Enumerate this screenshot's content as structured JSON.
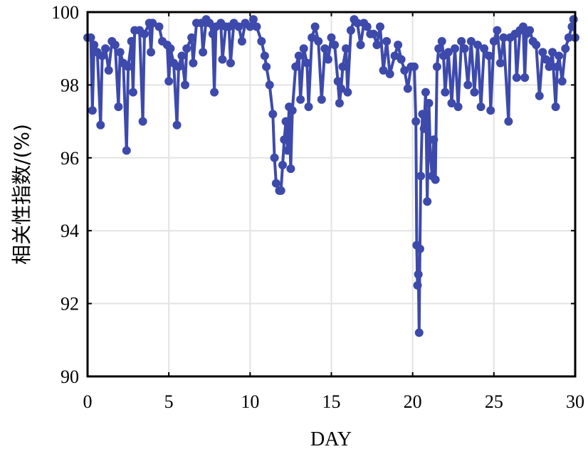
{
  "chart_data": {
    "type": "line",
    "title": "",
    "xlabel": "DAY",
    "ylabel": "相关性指数/(%)",
    "xlim": [
      0,
      30
    ],
    "ylim": [
      90,
      100
    ],
    "xticks": [
      0,
      5,
      10,
      15,
      20,
      25,
      30
    ],
    "yticks": [
      90,
      92,
      94,
      96,
      98,
      100
    ],
    "xtick_labels": [
      "0",
      "5",
      "10",
      "15",
      "20",
      "25",
      "30"
    ],
    "ytick_labels": [
      "90",
      "92",
      "94",
      "96",
      "98",
      "100"
    ],
    "grid": true,
    "legend": "none",
    "color": "#3d4aab",
    "series": [
      {
        "name": "相关性指数",
        "points": [
          [
            0,
            99.3
          ],
          [
            0.2,
            99.3
          ],
          [
            0.3,
            97.3
          ],
          [
            0.4,
            99.1
          ],
          [
            0.6,
            98.9
          ],
          [
            0.8,
            96.9
          ],
          [
            0.9,
            98.8
          ],
          [
            1.1,
            99.0
          ],
          [
            1.3,
            98.4
          ],
          [
            1.5,
            99.2
          ],
          [
            1.7,
            99.1
          ],
          [
            1.9,
            97.4
          ],
          [
            2.0,
            98.9
          ],
          [
            2.2,
            98.6
          ],
          [
            2.4,
            96.2
          ],
          [
            2.5,
            98.5
          ],
          [
            2.7,
            99.2
          ],
          [
            2.8,
            97.8
          ],
          [
            2.9,
            99.5
          ],
          [
            3.2,
            99.5
          ],
          [
            3.4,
            97.0
          ],
          [
            3.5,
            99.4
          ],
          [
            3.8,
            99.7
          ],
          [
            3.9,
            98.9
          ],
          [
            4.0,
            99.7
          ],
          [
            4.4,
            99.6
          ],
          [
            4.6,
            99.2
          ],
          [
            4.9,
            99.1
          ],
          [
            5.0,
            98.1
          ],
          [
            5.1,
            99.0
          ],
          [
            5.3,
            98.6
          ],
          [
            5.5,
            96.9
          ],
          [
            5.6,
            98.5
          ],
          [
            5.8,
            98.8
          ],
          [
            6.0,
            98.0
          ],
          [
            6.1,
            99.0
          ],
          [
            6.4,
            99.3
          ],
          [
            6.5,
            98.6
          ],
          [
            6.7,
            99.7
          ],
          [
            7.0,
            99.7
          ],
          [
            7.1,
            98.9
          ],
          [
            7.3,
            99.8
          ],
          [
            7.5,
            99.7
          ],
          [
            7.7,
            99.4
          ],
          [
            7.8,
            97.8
          ],
          [
            7.9,
            99.6
          ],
          [
            8.2,
            99.7
          ],
          [
            8.3,
            98.7
          ],
          [
            8.5,
            99.6
          ],
          [
            8.7,
            99.6
          ],
          [
            8.8,
            98.6
          ],
          [
            9.0,
            99.7
          ],
          [
            9.3,
            99.6
          ],
          [
            9.5,
            99.2
          ],
          [
            9.7,
            99.7
          ],
          [
            10.0,
            99.6
          ],
          [
            10.2,
            99.8
          ],
          [
            10.4,
            99.6
          ],
          [
            10.7,
            99.2
          ],
          [
            10.9,
            98.8
          ],
          [
            11.0,
            98.5
          ],
          [
            11.2,
            98.0
          ],
          [
            11.4,
            97.2
          ],
          [
            11.5,
            96.0
          ],
          [
            11.6,
            95.3
          ],
          [
            11.8,
            95.1
          ],
          [
            11.9,
            95.1
          ],
          [
            12.0,
            95.8
          ],
          [
            12.1,
            96.5
          ],
          [
            12.2,
            97.0
          ],
          [
            12.3,
            96.2
          ],
          [
            12.4,
            97.4
          ],
          [
            12.5,
            95.7
          ],
          [
            12.6,
            97.3
          ],
          [
            12.8,
            98.5
          ],
          [
            13.0,
            98.8
          ],
          [
            13.1,
            97.6
          ],
          [
            13.3,
            99.0
          ],
          [
            13.5,
            98.6
          ],
          [
            13.6,
            97.4
          ],
          [
            13.8,
            99.3
          ],
          [
            14.0,
            99.6
          ],
          [
            14.2,
            99.2
          ],
          [
            14.4,
            97.6
          ],
          [
            14.6,
            99.0
          ],
          [
            14.8,
            98.7
          ],
          [
            15.0,
            99.3
          ],
          [
            15.2,
            99.1
          ],
          [
            15.4,
            98.1
          ],
          [
            15.5,
            97.5
          ],
          [
            15.6,
            97.9
          ],
          [
            15.7,
            98.5
          ],
          [
            15.9,
            99.0
          ],
          [
            16.0,
            97.8
          ],
          [
            16.2,
            99.5
          ],
          [
            16.4,
            99.8
          ],
          [
            16.6,
            99.7
          ],
          [
            16.8,
            99.1
          ],
          [
            17.0,
            99.7
          ],
          [
            17.2,
            99.6
          ],
          [
            17.4,
            99.4
          ],
          [
            17.6,
            99.4
          ],
          [
            17.8,
            99.1
          ],
          [
            18.0,
            99.6
          ],
          [
            18.2,
            98.4
          ],
          [
            18.4,
            99.2
          ],
          [
            18.6,
            98.3
          ],
          [
            18.9,
            98.8
          ],
          [
            19.1,
            99.1
          ],
          [
            19.3,
            98.7
          ],
          [
            19.5,
            98.4
          ],
          [
            19.7,
            97.9
          ],
          [
            19.9,
            98.5
          ],
          [
            20.1,
            98.5
          ],
          [
            20.2,
            97.0
          ],
          [
            20.25,
            93.6
          ],
          [
            20.3,
            92.5
          ],
          [
            20.35,
            92.8
          ],
          [
            20.4,
            91.2
          ],
          [
            20.45,
            93.5
          ],
          [
            20.5,
            95.5
          ],
          [
            20.6,
            97.2
          ],
          [
            20.7,
            96.8
          ],
          [
            20.8,
            97.8
          ],
          [
            20.9,
            94.8
          ],
          [
            21.0,
            97.5
          ],
          [
            21.1,
            96.0
          ],
          [
            21.2,
            95.5
          ],
          [
            21.3,
            96.5
          ],
          [
            21.4,
            95.4
          ],
          [
            21.5,
            98.5
          ],
          [
            21.6,
            99.0
          ],
          [
            21.8,
            99.2
          ],
          [
            21.9,
            98.8
          ],
          [
            22.0,
            97.8
          ],
          [
            22.2,
            98.9
          ],
          [
            22.4,
            97.5
          ],
          [
            22.6,
            99.0
          ],
          [
            22.8,
            97.4
          ],
          [
            23.0,
            99.2
          ],
          [
            23.2,
            99.0
          ],
          [
            23.4,
            98.0
          ],
          [
            23.6,
            99.2
          ],
          [
            23.8,
            97.8
          ],
          [
            24.0,
            99.1
          ],
          [
            24.2,
            97.4
          ],
          [
            24.4,
            99.0
          ],
          [
            24.7,
            98.8
          ],
          [
            24.8,
            97.3
          ],
          [
            25.0,
            99.2
          ],
          [
            25.2,
            99.5
          ],
          [
            25.4,
            98.6
          ],
          [
            25.6,
            99.3
          ],
          [
            25.9,
            97.0
          ],
          [
            26.0,
            99.3
          ],
          [
            26.3,
            99.4
          ],
          [
            26.4,
            98.2
          ],
          [
            26.6,
            99.5
          ],
          [
            26.8,
            99.6
          ],
          [
            26.9,
            98.2
          ],
          [
            27.0,
            99.4
          ],
          [
            27.2,
            99.5
          ],
          [
            27.4,
            99.2
          ],
          [
            27.6,
            99.1
          ],
          [
            27.8,
            97.7
          ],
          [
            28.0,
            98.9
          ],
          [
            28.2,
            98.7
          ],
          [
            28.4,
            98.5
          ],
          [
            28.6,
            98.9
          ],
          [
            28.8,
            97.4
          ],
          [
            28.9,
            98.5
          ],
          [
            29.0,
            98.8
          ],
          [
            29.2,
            98.1
          ],
          [
            29.4,
            99.0
          ],
          [
            29.6,
            99.3
          ],
          [
            29.8,
            99.6
          ],
          [
            29.9,
            99.8
          ],
          [
            30.0,
            99.3
          ]
        ]
      }
    ]
  }
}
